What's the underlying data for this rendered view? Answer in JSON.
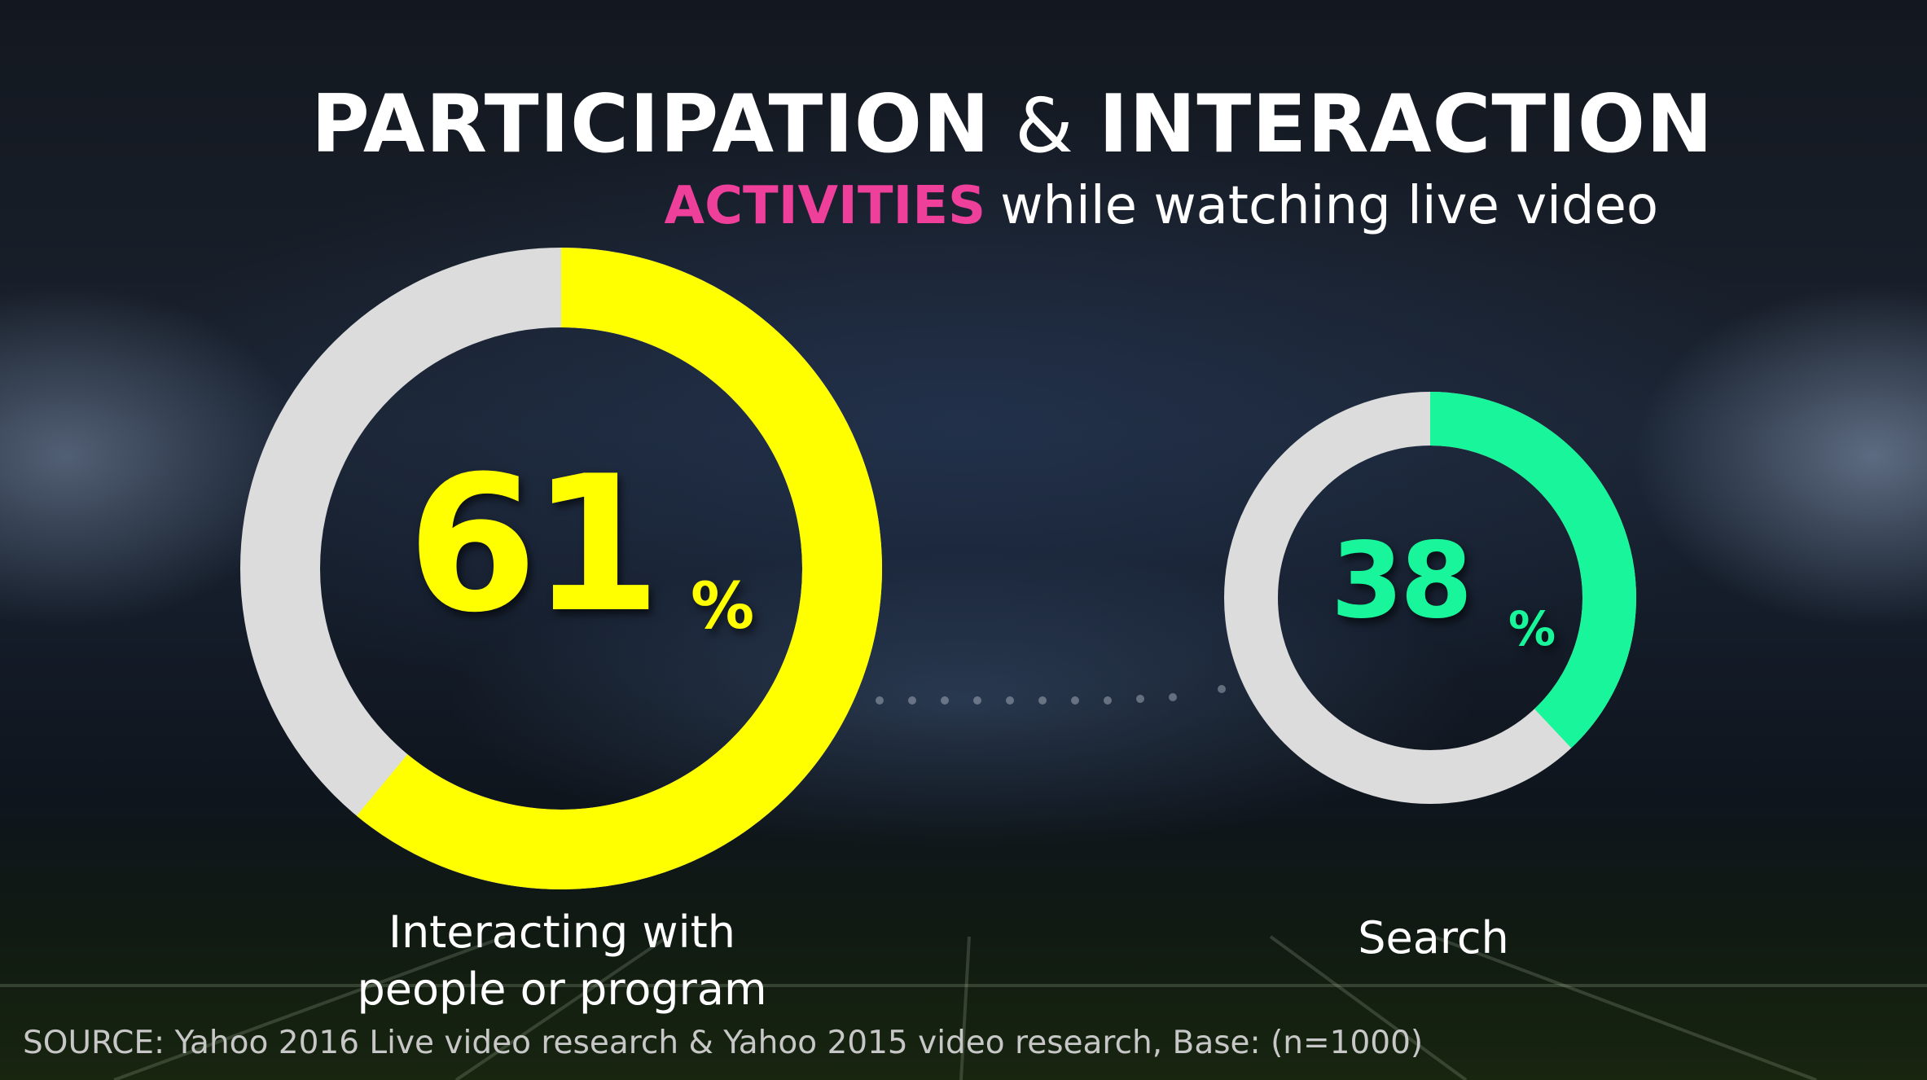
{
  "title": {
    "part1": "PARTICIPATION",
    "amp": "&",
    "part2": "INTERACTION"
  },
  "subtitle": {
    "accent": "ACTIVITIES",
    "rest": "while watching live video"
  },
  "colors": {
    "accent_pink": "#ee3f9a",
    "series_yellow": "#ffff00",
    "series_green": "#18f59a",
    "track_gray": "#dcdcdc"
  },
  "chart_data": [
    {
      "type": "pie",
      "style": "donut",
      "category": "Interacting with people or program",
      "value": 61,
      "unit": "%",
      "value_label": "61",
      "unit_label": "%",
      "label_lines": [
        "Interacting with",
        "people or program"
      ],
      "color": "#ffff00"
    },
    {
      "type": "pie",
      "style": "donut",
      "category": "Search",
      "value": 38,
      "unit": "%",
      "value_label": "38",
      "unit_label": "%",
      "label_lines": [
        "Search"
      ],
      "color": "#18f59a"
    }
  ],
  "source": "SOURCE: Yahoo 2016 Live video research & Yahoo 2015 video research, Base: (n=1000)"
}
